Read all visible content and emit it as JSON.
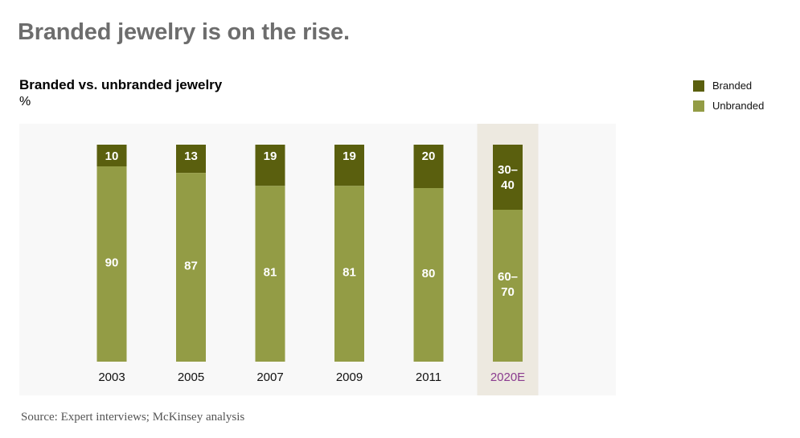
{
  "headline": "Branded jewelry is on the rise.",
  "legend": {
    "branded": "Branded",
    "unbranded": "Unbranded"
  },
  "source": "Source: Expert interviews; McKinsey analysis",
  "colors": {
    "branded": "#5a5f0e",
    "unbranded": "#939c45",
    "plot_background": "#f8f8f8",
    "highlight_background": "#ede9e0",
    "highlight_label": "#8a3b8f"
  },
  "chart_data": {
    "type": "bar",
    "stacked": true,
    "title": "Branded vs. unbranded jewelry",
    "ylabel": "%",
    "categories": [
      "2003",
      "2005",
      "2007",
      "2009",
      "2011",
      "2020E"
    ],
    "highlighted_category": "2020E",
    "ylim": [
      0,
      100
    ],
    "series": [
      {
        "name": "Unbranded",
        "values": [
          90,
          87,
          81,
          81,
          80,
          70
        ],
        "labels": [
          "90",
          "87",
          "81",
          "81",
          "80",
          "60–70"
        ]
      },
      {
        "name": "Branded",
        "values": [
          10,
          13,
          19,
          19,
          20,
          30
        ],
        "labels": [
          "10",
          "13",
          "19",
          "19",
          "20",
          "30–40"
        ]
      }
    ]
  }
}
